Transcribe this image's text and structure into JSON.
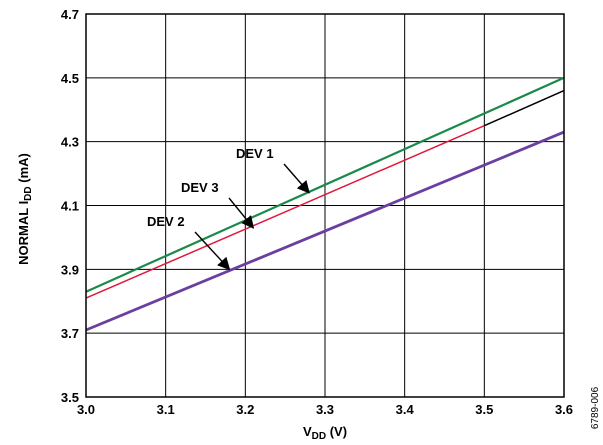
{
  "chart_data": {
    "type": "line",
    "xlabel": {
      "main": "V",
      "sub": "DD",
      "tail": " (V)"
    },
    "ylabel": {
      "main": "NORMAL I",
      "sub": "DD",
      "tail": " (mA)"
    },
    "xlim": [
      3.0,
      3.6
    ],
    "ylim": [
      3.5,
      4.7
    ],
    "x_ticks": [
      "3.0",
      "3.1",
      "3.2",
      "3.3",
      "3.4",
      "3.5",
      "3.6"
    ],
    "y_ticks": [
      "3.5",
      "3.7",
      "3.9",
      "4.1",
      "4.3",
      "4.5",
      "4.7"
    ],
    "grid": true,
    "series": [
      {
        "name": "DEV 1",
        "color": "#1a8a4a",
        "x": [
          3.0,
          3.6
        ],
        "y": [
          3.83,
          4.5
        ]
      },
      {
        "name": "DEV 3",
        "color": "#e0193c",
        "x": [
          3.0,
          3.5
        ],
        "y": [
          3.81,
          4.35
        ]
      },
      {
        "name": "",
        "color": "#000000",
        "x": [
          3.5,
          3.6
        ],
        "y": [
          4.35,
          4.46
        ]
      },
      {
        "name": "DEV 2",
        "color": "#6a3fa0",
        "x": [
          3.0,
          3.6
        ],
        "y": [
          3.71,
          4.33
        ]
      }
    ],
    "annotations": [
      {
        "text": "DEV 1",
        "target": [
          3.28,
          4.14
        ]
      },
      {
        "text": "DEV 3",
        "target": [
          3.21,
          4.03
        ]
      },
      {
        "text": "DEV 2",
        "target": [
          3.18,
          3.9
        ]
      }
    ]
  },
  "figure_id": "6789-006"
}
